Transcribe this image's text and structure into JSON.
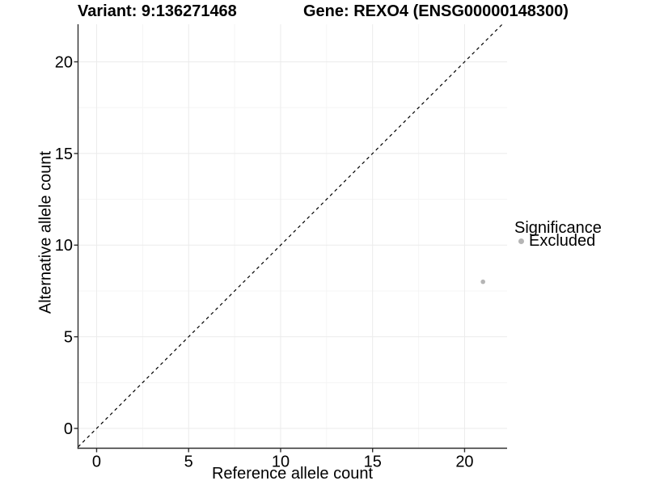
{
  "header": {
    "variant_title": "Variant: 9:136271468",
    "gene_title": "Gene: REXO4 (ENSG00000148300)"
  },
  "chart_data": {
    "type": "scatter",
    "title": "Variant: 9:136271468 — Gene: REXO4 (ENSG00000148300)",
    "xlabel": "Reference allele count",
    "ylabel": "Alternative allele count",
    "xlim": [
      -1.01,
      22.31
    ],
    "ylim": [
      -1.08,
      22.05
    ],
    "x_ticks": [
      0,
      5,
      10,
      15,
      20
    ],
    "y_ticks": [
      0,
      5,
      10,
      15,
      20
    ],
    "x_minor_ticks": [
      2.5,
      7.5,
      12.5,
      17.5
    ],
    "y_minor_ticks": [
      2.5,
      7.5,
      12.5,
      17.5
    ],
    "grid": true,
    "legend_position": "right",
    "series": [
      {
        "name": "Excluded",
        "points": [
          {
            "x": 21,
            "y": 8
          }
        ]
      }
    ],
    "reference_line": {
      "slope": 1,
      "intercept": 0,
      "style": "dashed"
    },
    "colors": {
      "excluded_point": "#b5b5b5",
      "axis": "#2e2e2e",
      "grid_major": "#ebebeb",
      "grid_minor": "#f5f5f5",
      "reference_line": "#000000",
      "text": "#000000"
    }
  },
  "legend": {
    "title": "Significance",
    "items": [
      {
        "label": "Excluded",
        "color": "#b5b5b5"
      }
    ]
  }
}
